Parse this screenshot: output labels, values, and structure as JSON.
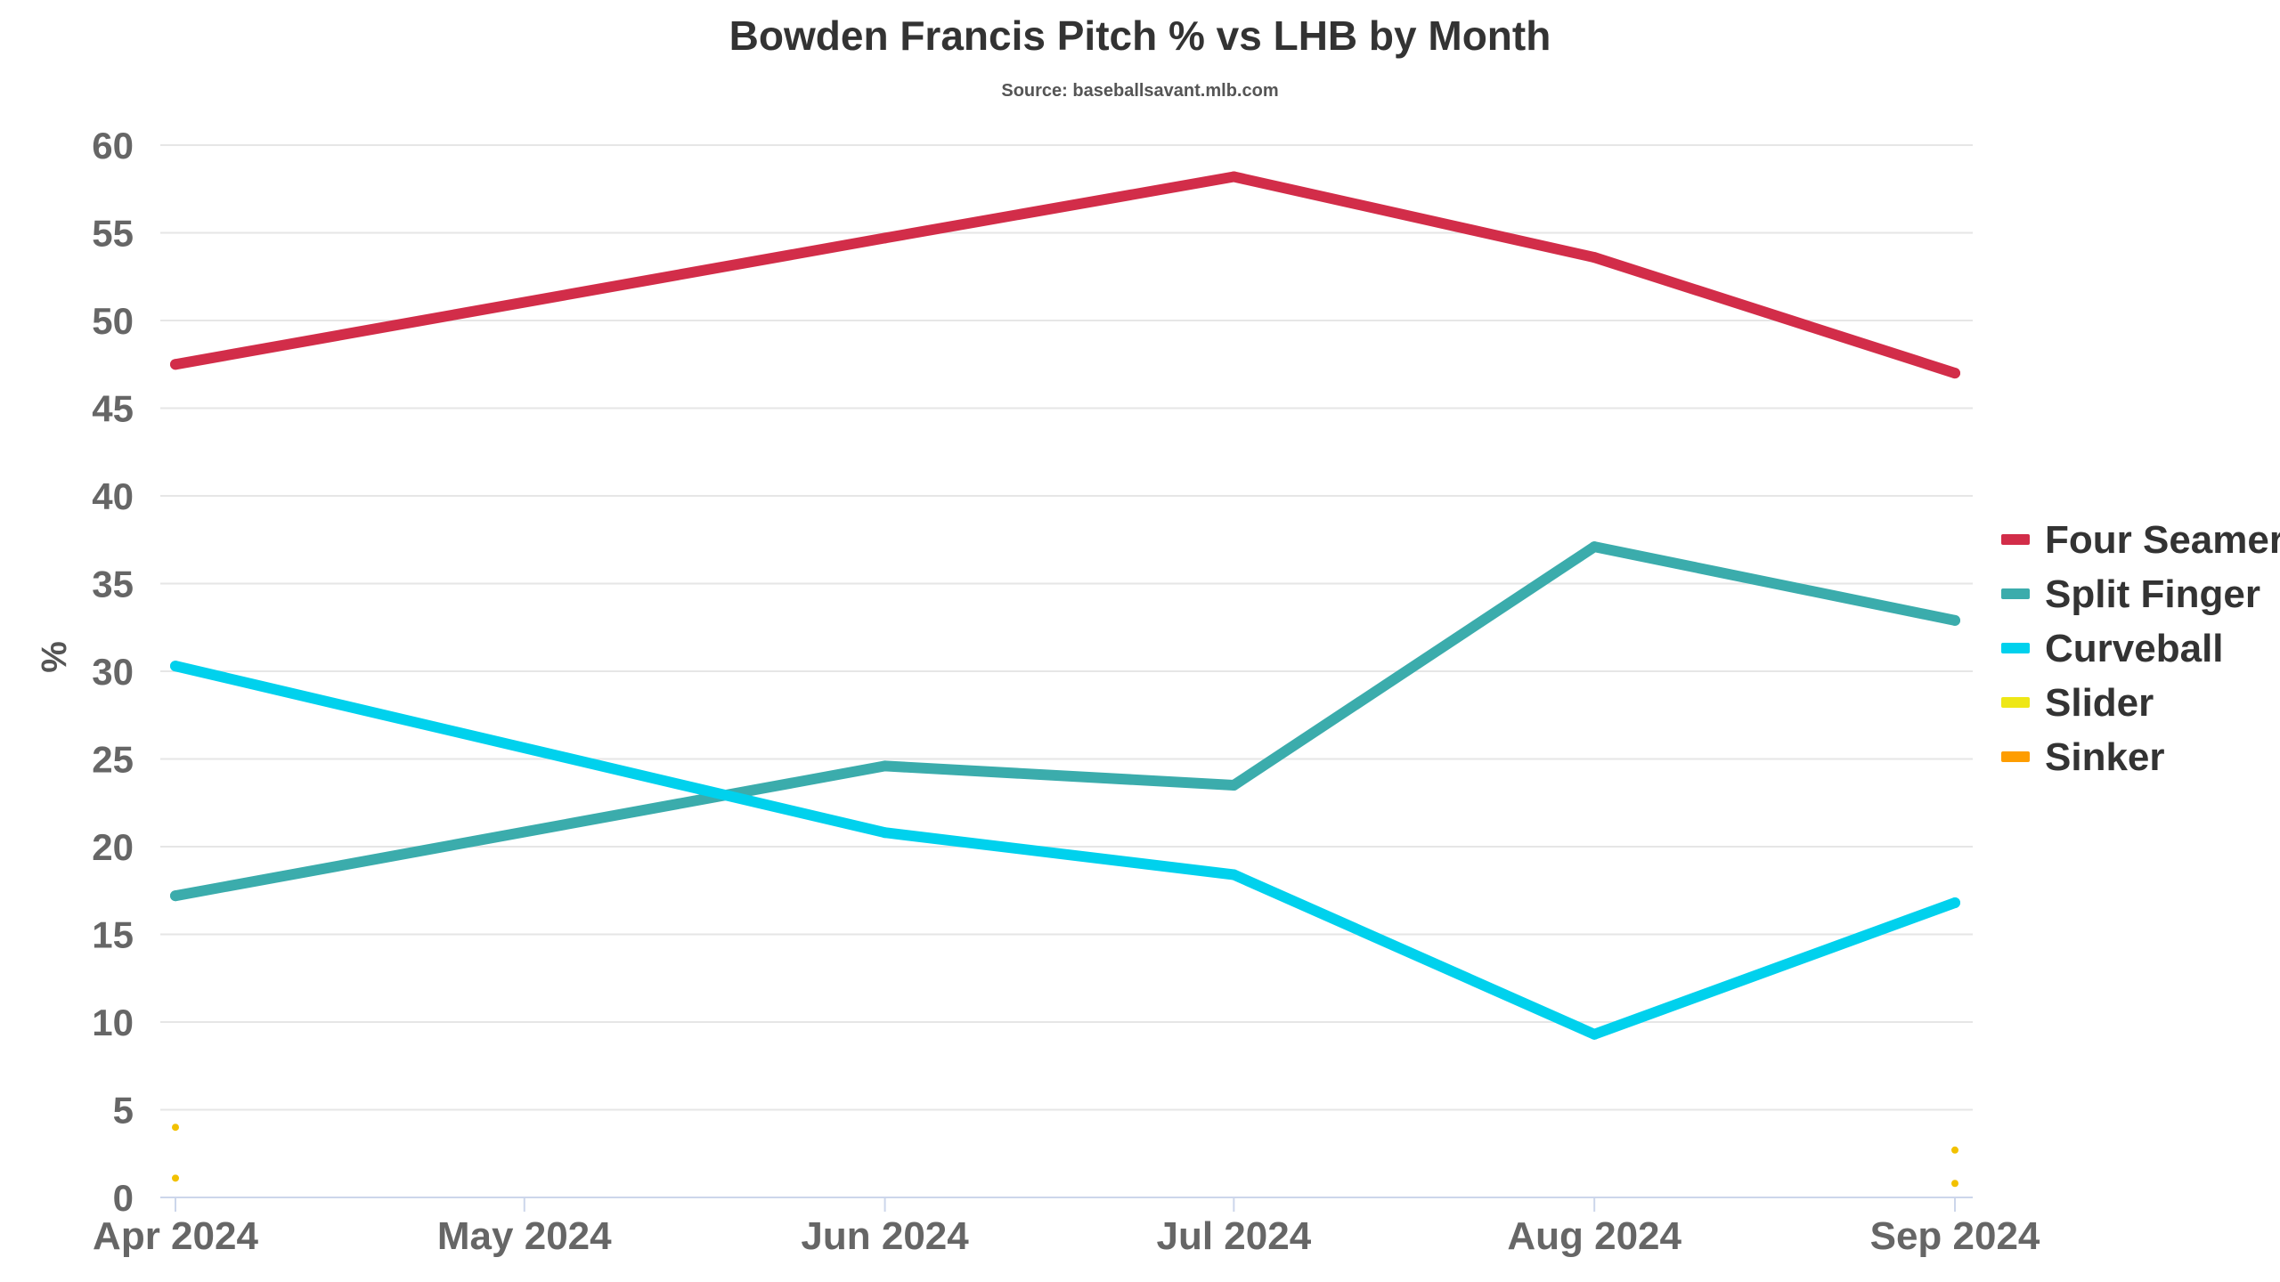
{
  "chart_data": {
    "type": "line",
    "title": "Bowden Francis Pitch % vs LHB by Month",
    "subtitle": "Source: baseballsavant.mlb.com",
    "xlabel": "",
    "ylabel": "%",
    "categories": [
      "Apr 2024",
      "May 2024",
      "Jun 2024",
      "Jul 2024",
      "Aug 2024",
      "Sep 2024"
    ],
    "x_dates": [
      "2024-04-01",
      "2024-05-01",
      "2024-06-01",
      "2024-07-01",
      "2024-08-01",
      "2024-09-01"
    ],
    "ylim": [
      0,
      60
    ],
    "yticks": [
      0,
      5,
      10,
      15,
      20,
      25,
      30,
      35,
      40,
      45,
      50,
      55,
      60
    ],
    "grid": true,
    "legend_position": "right",
    "series": [
      {
        "name": "Four Seamer",
        "color": "#d22d49",
        "points": [
          [
            "2024-04-01",
            47.5
          ],
          [
            "2024-06-01",
            54.7
          ],
          [
            "2024-07-01",
            58.2
          ],
          [
            "2024-08-01",
            53.6
          ],
          [
            "2024-09-01",
            47.0
          ]
        ]
      },
      {
        "name": "Split Finger",
        "color": "#3bacac",
        "points": [
          [
            "2024-04-01",
            17.2
          ],
          [
            "2024-06-01",
            24.6
          ],
          [
            "2024-07-01",
            23.5
          ],
          [
            "2024-08-01",
            37.1
          ],
          [
            "2024-09-01",
            32.9
          ]
        ]
      },
      {
        "name": "Curveball",
        "color": "#00d1ed",
        "points": [
          [
            "2024-04-01",
            30.3
          ],
          [
            "2024-06-01",
            20.8
          ],
          [
            "2024-07-01",
            18.4
          ],
          [
            "2024-08-01",
            9.3
          ],
          [
            "2024-09-01",
            16.8
          ]
        ]
      },
      {
        "name": "Slider",
        "color": "#eee716",
        "points": [
          [
            "2024-04-01",
            4.0
          ],
          [
            "2024-09-01",
            2.7
          ]
        ]
      },
      {
        "name": "Sinker",
        "color": "#fe9d00",
        "points": [
          [
            "2024-04-01",
            1.1
          ],
          [
            "2024-09-01",
            0.8
          ]
        ]
      }
    ]
  }
}
